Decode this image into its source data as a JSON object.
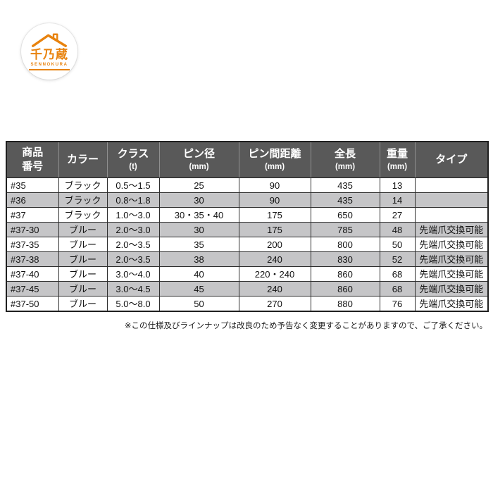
{
  "logo": {
    "brand_jp": "千乃蔵",
    "brand_en": "SENNOKURA",
    "accent_color": "#e8820d"
  },
  "table": {
    "header_bg": "#595959",
    "alt_row_bg": "#c5c5c7",
    "headers": [
      {
        "line1": "商品",
        "line2": "番号",
        "sub": false
      },
      {
        "line1": "カラー",
        "line2": "",
        "sub": false
      },
      {
        "line1": "クラス",
        "line2": "(t)",
        "sub": true
      },
      {
        "line1": "ピン径",
        "line2": "(mm)",
        "sub": true
      },
      {
        "line1": "ピン間距離",
        "line2": "(mm)",
        "sub": true
      },
      {
        "line1": "全長",
        "line2": "(mm)",
        "sub": true
      },
      {
        "line1": "重量",
        "line2": "(mm)",
        "sub": true
      },
      {
        "line1": "タイプ",
        "line2": "",
        "sub": false
      }
    ],
    "rows": [
      [
        "#35",
        "ブラック",
        "0.5〜1.5",
        "25",
        "90",
        "435",
        "13",
        ""
      ],
      [
        "#36",
        "ブラック",
        "0.8〜1.8",
        "30",
        "90",
        "435",
        "14",
        ""
      ],
      [
        "#37",
        "ブラック",
        "1.0〜3.0",
        "30・35・40",
        "175",
        "650",
        "27",
        ""
      ],
      [
        "#37-30",
        "ブルー",
        "2.0〜3.0",
        "30",
        "175",
        "785",
        "48",
        "先端爪交換可能"
      ],
      [
        "#37-35",
        "ブルー",
        "2.0〜3.5",
        "35",
        "200",
        "800",
        "50",
        "先端爪交換可能"
      ],
      [
        "#37-38",
        "ブルー",
        "2.0〜3.5",
        "38",
        "240",
        "830",
        "52",
        "先端爪交換可能"
      ],
      [
        "#37-40",
        "ブルー",
        "3.0〜4.0",
        "40",
        "220・240",
        "860",
        "68",
        "先端爪交換可能"
      ],
      [
        "#37-45",
        "ブルー",
        "3.0〜4.5",
        "45",
        "240",
        "860",
        "68",
        "先端爪交換可能"
      ],
      [
        "#37-50",
        "ブルー",
        "5.0〜8.0",
        "50",
        "270",
        "880",
        "76",
        "先端爪交換可能"
      ]
    ]
  },
  "footnote": "※この仕様及びラインナップは改良のため予告なく変更することがありますので、ご了承ください。"
}
